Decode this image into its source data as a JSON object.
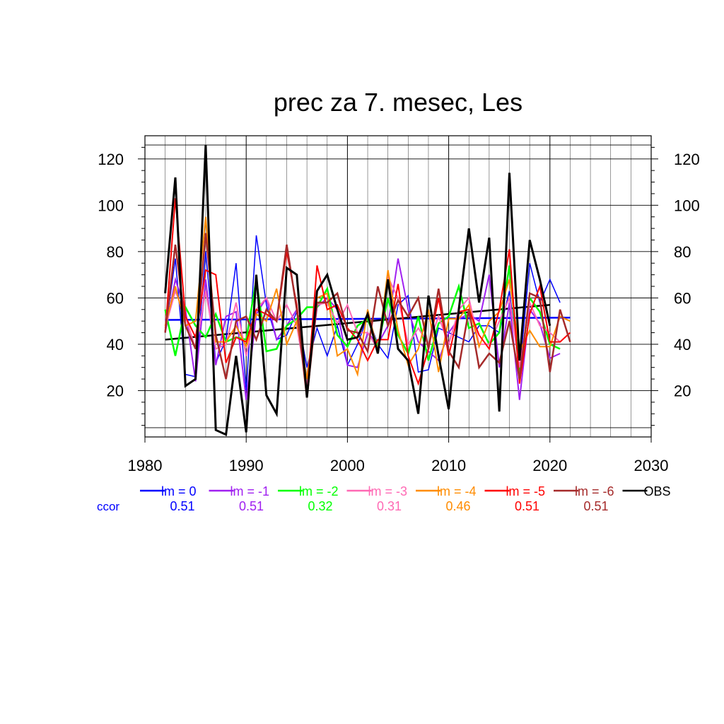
{
  "chart_data": {
    "type": "line",
    "title": "prec za 7. mesec, Les",
    "xlabel": "",
    "ylabel": "",
    "xlim": [
      1980,
      2030
    ],
    "ylim": [
      0,
      130
    ],
    "x_ticks": [
      "1980",
      "1990",
      "2000",
      "2010",
      "2020",
      "2030"
    ],
    "y_ticks": [
      "20",
      "40",
      "60",
      "80",
      "100",
      "120"
    ],
    "grid": true,
    "x": [
      1982,
      1983,
      1984,
      1985,
      1986,
      1987,
      1988,
      1989,
      1990,
      1991,
      1992,
      1993,
      1994,
      1995,
      1996,
      1997,
      1998,
      1999,
      2000,
      2001,
      2002,
      2003,
      2004,
      2005,
      2006,
      2007,
      2008,
      2009,
      2010,
      2011,
      2012,
      2013,
      2014,
      2015,
      2016,
      2017,
      2018,
      2019,
      2020,
      2021,
      2022
    ],
    "series": [
      {
        "name": "lm = 0",
        "color": "#0000ff",
        "width": 1.5,
        "values": [
          45,
          77,
          27,
          26,
          80,
          32,
          42,
          75,
          20,
          87,
          57,
          42,
          44,
          54,
          30,
          47,
          35,
          48,
          31,
          40,
          52,
          40,
          34,
          57,
          61,
          28,
          29,
          47,
          45,
          43,
          41,
          48,
          48,
          45,
          63,
          28,
          75,
          58,
          68,
          58,
          null
        ]
      },
      {
        "name": "lm = -1",
        "color": "#a020f0",
        "width": 2,
        "values": [
          45,
          68,
          55,
          24,
          68,
          31,
          52,
          54,
          16,
          53,
          60,
          42,
          48,
          55,
          20,
          56,
          60,
          55,
          31,
          30,
          45,
          40,
          48,
          77,
          55,
          41,
          37,
          33,
          45,
          51,
          53,
          50,
          70,
          30,
          58,
          16,
          55,
          49,
          34,
          36,
          null
        ]
      },
      {
        "name": "lm = -2",
        "color": "#00ff00",
        "width": 2.5,
        "values": [
          55,
          35,
          56,
          48,
          43,
          53,
          41,
          43,
          42,
          68,
          37,
          38,
          48,
          51,
          56,
          56,
          64,
          44,
          39,
          48,
          51,
          39,
          60,
          44,
          36,
          52,
          33,
          49,
          52,
          65,
          47,
          49,
          40,
          45,
          74,
          27,
          60,
          54,
          40,
          38,
          null
        ]
      },
      {
        "name": "lm = -3",
        "color": "#ff69b4",
        "width": 2,
        "values": [
          47,
          63,
          52,
          38,
          63,
          38,
          40,
          58,
          35,
          55,
          60,
          50,
          57,
          48,
          22,
          57,
          58,
          49,
          57,
          45,
          45,
          38,
          69,
          60,
          40,
          47,
          40,
          52,
          40,
          55,
          60,
          40,
          40,
          50,
          60,
          30,
          58,
          48,
          45,
          41,
          null
        ]
      },
      {
        "name": "lm = -4",
        "color": "#ff8c00",
        "width": 2,
        "values": [
          48,
          65,
          48,
          50,
          95,
          41,
          41,
          48,
          39,
          53,
          50,
          64,
          40,
          50,
          25,
          60,
          62,
          35,
          38,
          27,
          55,
          37,
          72,
          46,
          31,
          38,
          55,
          28,
          51,
          51,
          57,
          39,
          50,
          54,
          68,
          37,
          46,
          39,
          39,
          52,
          50
        ]
      },
      {
        "name": "lm = -5",
        "color": "#ff0000",
        "width": 2,
        "values": [
          45,
          103,
          52,
          43,
          72,
          70,
          32,
          43,
          41,
          55,
          53,
          50,
          80,
          57,
          18,
          74,
          55,
          57,
          47,
          42,
          33,
          42,
          42,
          66,
          35,
          23,
          38,
          60,
          35,
          54,
          55,
          44,
          38,
          55,
          81,
          23,
          53,
          65,
          41,
          41,
          45
        ]
      },
      {
        "name": "lm = -6",
        "color": "#a52a2a",
        "width": 2.5,
        "values": [
          45,
          83,
          48,
          38,
          88,
          44,
          25,
          50,
          52,
          42,
          55,
          50,
          83,
          55,
          17,
          58,
          58,
          62,
          46,
          45,
          37,
          65,
          48,
          59,
          52,
          60,
          38,
          64,
          37,
          30,
          55,
          30,
          36,
          32,
          50,
          25,
          62,
          60,
          28,
          55,
          41
        ]
      },
      {
        "name": "OBS",
        "color": "#000000",
        "width": 3,
        "values": [
          62,
          112,
          22,
          25,
          126,
          3,
          1,
          35,
          2,
          70,
          18,
          10,
          73,
          70,
          17,
          63,
          70,
          55,
          42,
          43,
          53,
          36,
          68,
          38,
          33,
          10,
          61,
          35,
          12,
          55,
          90,
          58,
          86,
          11,
          114,
          33,
          85,
          68,
          48,
          null,
          null
        ]
      }
    ],
    "trend_lines": [
      {
        "color": "#0000ff",
        "x": [
          1982,
          2022
        ],
        "y": [
          50.5,
          51.5
        ]
      },
      {
        "color": "#000000",
        "x": [
          1982,
          2020
        ],
        "y": [
          42,
          57
        ]
      }
    ],
    "legend": {
      "placement": "below",
      "row_label": "ccor",
      "entries": [
        {
          "label": "lm = 0",
          "color": "#0000ff",
          "ccor": "0.51"
        },
        {
          "label": "lm = -1",
          "color": "#a020f0",
          "ccor": "0.51"
        },
        {
          "label": "lm = -2",
          "color": "#00ff00",
          "ccor": "0.32"
        },
        {
          "label": "lm = -3",
          "color": "#ff69b4",
          "ccor": "0.31"
        },
        {
          "label": "lm = -4",
          "color": "#ff8c00",
          "ccor": "0.46"
        },
        {
          "label": "lm = -5",
          "color": "#ff0000",
          "ccor": "0.51"
        },
        {
          "label": "lm = -6",
          "color": "#a52a2a",
          "ccor": "0.51"
        },
        {
          "label": "OBS",
          "color": "#000000",
          "ccor": ""
        }
      ]
    }
  }
}
